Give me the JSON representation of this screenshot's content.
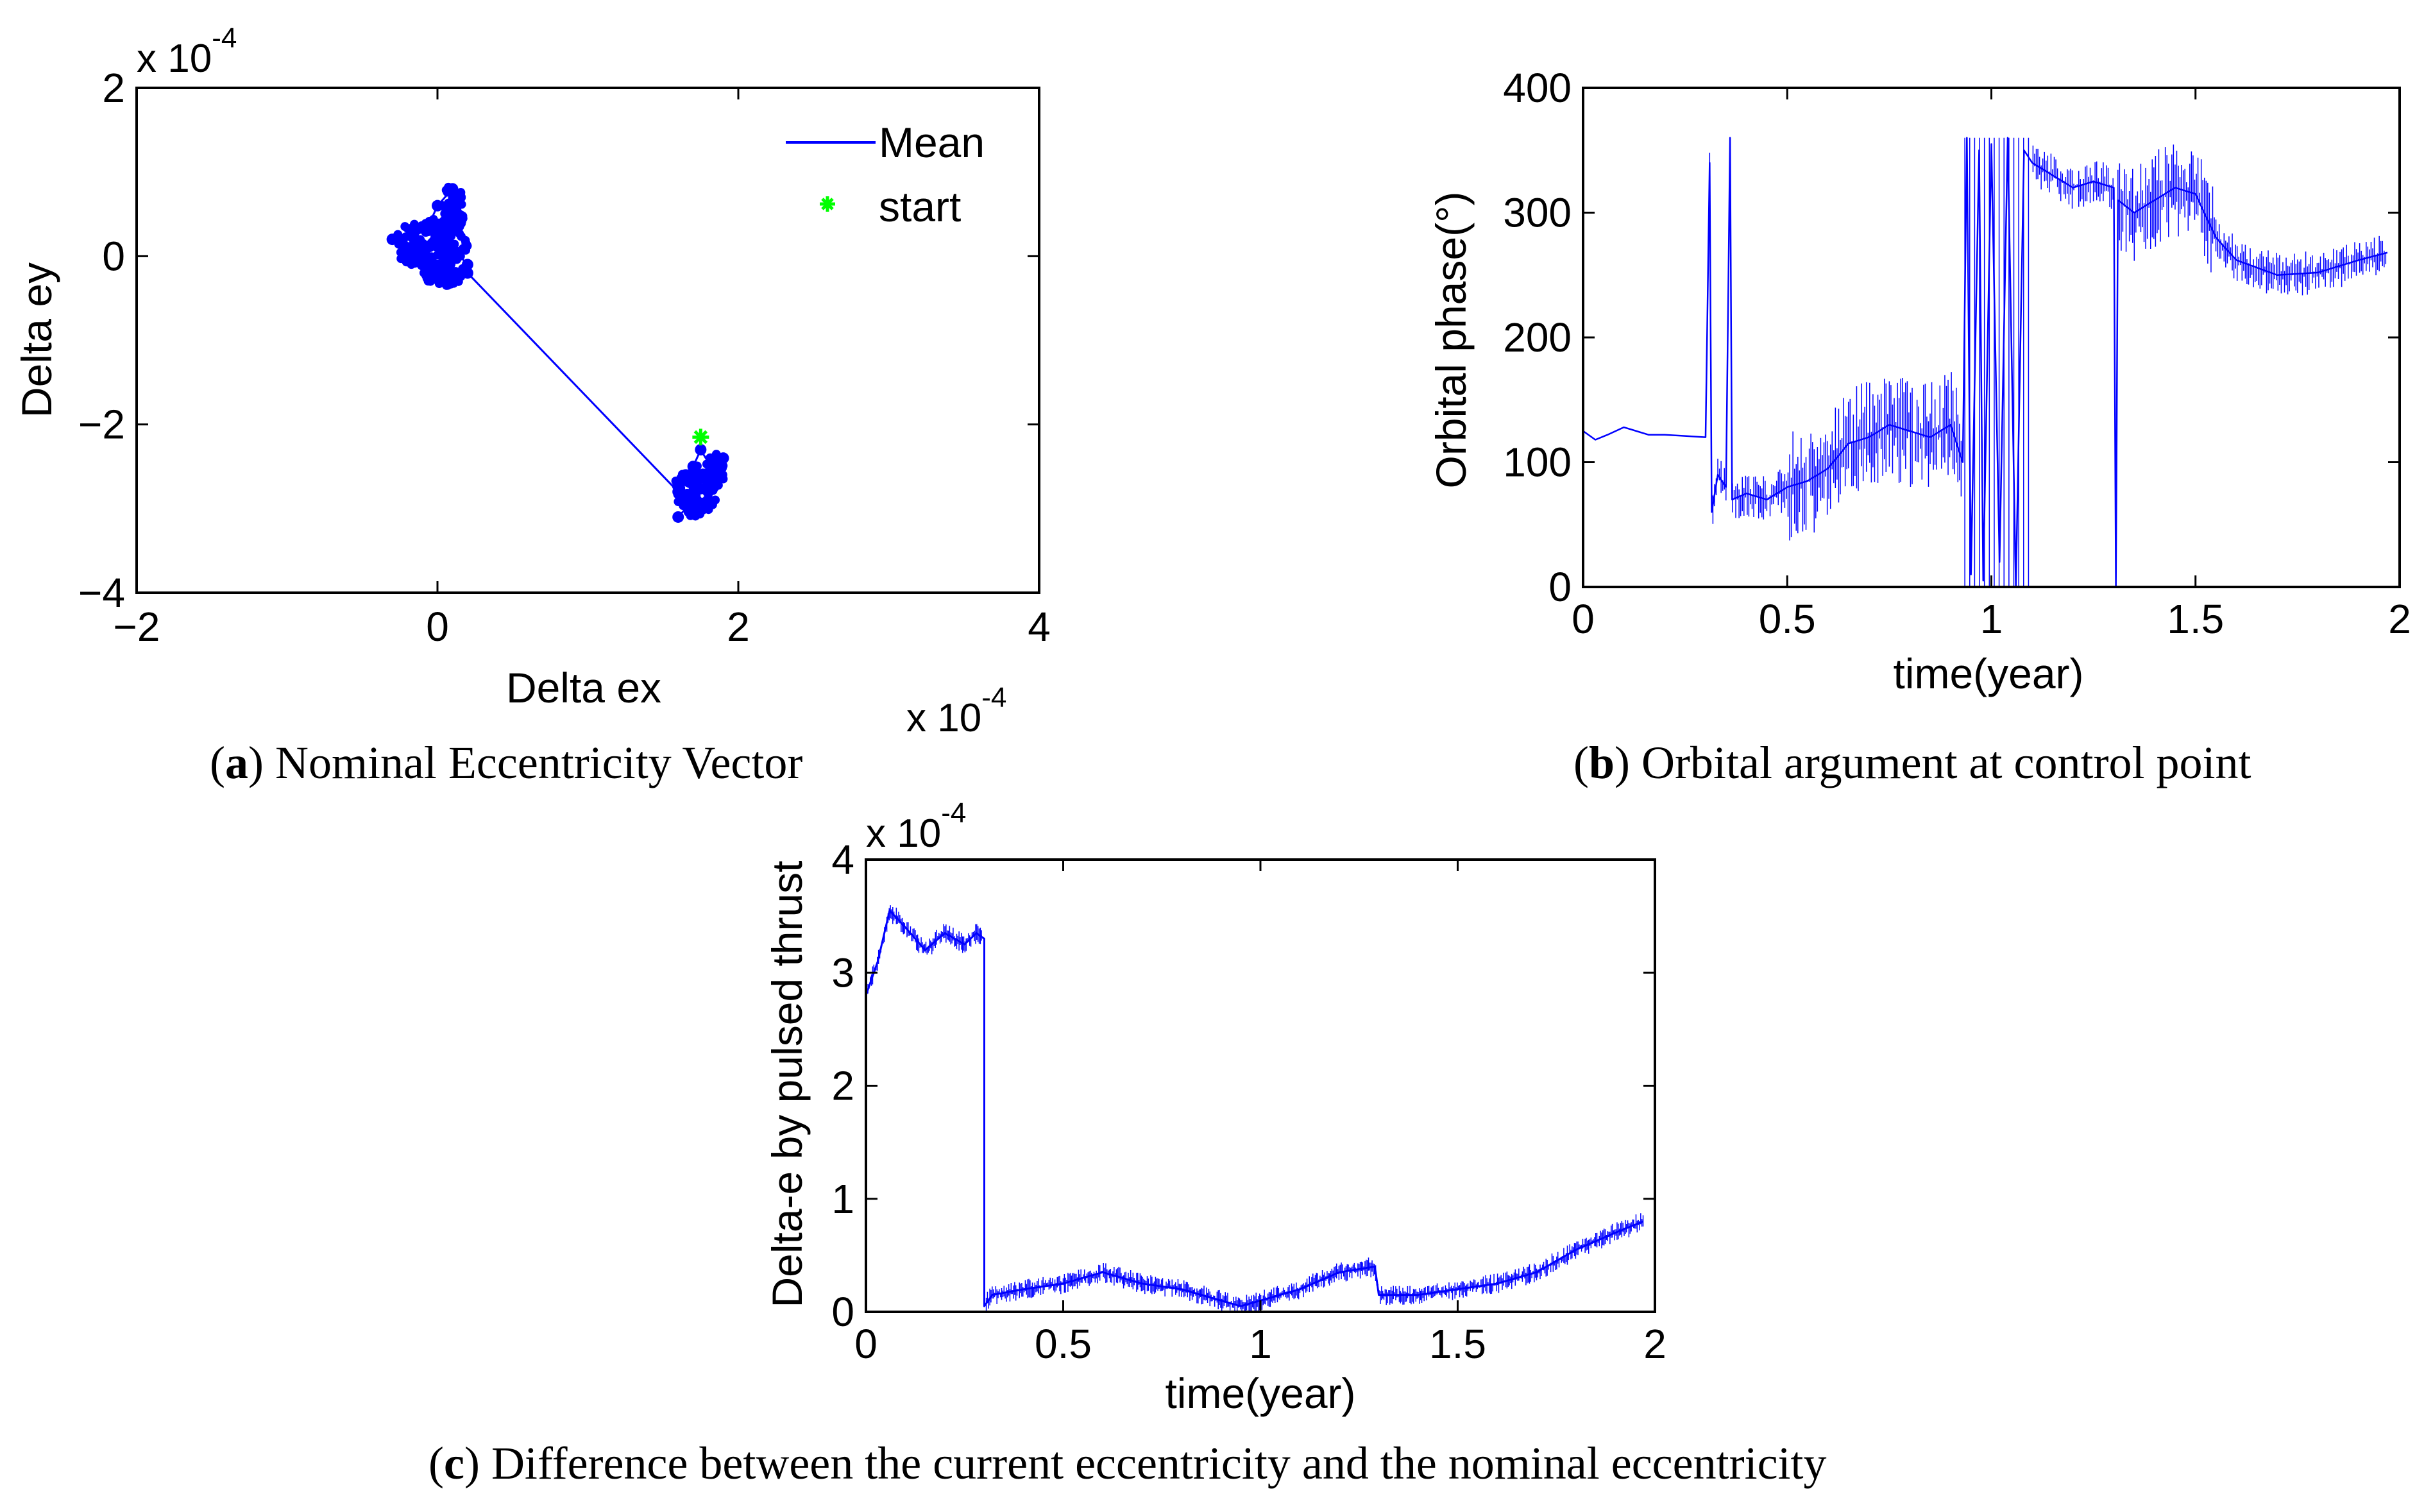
{
  "colors": {
    "series": "#0000ff",
    "start": "#00ff00",
    "axis": "#000000"
  },
  "chart_data": [
    {
      "id": "a",
      "type": "scatter",
      "xlabel": "Delta ex",
      "ylabel": "Delta ey",
      "x_multiplier": "x 10",
      "x_multiplier_exp": "-4",
      "y_multiplier": "x 10",
      "y_multiplier_exp": "-4",
      "xlim": [
        -2,
        4
      ],
      "ylim": [
        -4,
        2
      ],
      "xticks": [
        -2,
        0,
        2,
        4
      ],
      "xtick_labels": [
        "−2",
        "0",
        "2",
        "4"
      ],
      "yticks": [
        -4,
        -2,
        0,
        2
      ],
      "ytick_labels": [
        "−4",
        "−2",
        "0",
        "2"
      ],
      "legend": {
        "position": "top-right",
        "entries": [
          "Mean",
          "start"
        ]
      },
      "series": [
        {
          "name": "Mean",
          "x": [
            1.6,
            1.7,
            1.65,
            1.8,
            1.7,
            1.75,
            1.85,
            1.9,
            1.8,
            1.7,
            1.6,
            0.2,
            0.1,
            0.0,
            -0.1,
            -0.2,
            -0.3,
            -0.2,
            -0.1,
            0.0,
            0.1,
            0.15,
            0.1,
            0.0,
            -0.05,
            0.05,
            0.2,
            0.1
          ],
          "y": [
            -3.1,
            -2.9,
            -2.6,
            -2.8,
            -2.5,
            -2.3,
            -2.6,
            -2.4,
            -2.9,
            -3.0,
            -2.8,
            -0.2,
            -0.3,
            -0.2,
            -0.1,
            0.1,
            0.2,
            0.0,
            0.1,
            0.3,
            0.5,
            0.7,
            0.8,
            0.6,
            0.4,
            0.2,
            -0.1,
            -0.3
          ]
        },
        {
          "name": "start",
          "x": [
            1.75
          ],
          "y": [
            -2.15
          ]
        }
      ]
    },
    {
      "id": "b",
      "type": "line",
      "xlabel": "time(year)",
      "ylabel": "Orbital phase(°)",
      "xlim": [
        0,
        2
      ],
      "ylim": [
        0,
        400
      ],
      "xticks": [
        0,
        0.5,
        1,
        1.5,
        2
      ],
      "xtick_labels": [
        "0",
        "0.5",
        "1",
        "1.5",
        "2"
      ],
      "yticks": [
        0,
        100,
        200,
        300,
        400
      ],
      "yticks_labels": [
        "0",
        "100",
        "200",
        "300",
        "400"
      ],
      "series": [
        {
          "x": [
            0,
            0.03,
            0.06,
            0.1,
            0.13,
            0.16,
            0.2,
            0.25,
            0.3,
            0.31,
            0.315,
            0.33,
            0.35,
            0.36,
            0.365,
            0.4,
            0.45,
            0.5,
            0.55,
            0.6,
            0.65,
            0.7,
            0.75,
            0.8,
            0.85,
            0.9,
            0.93,
            0.94,
            0.95,
            0.97,
            0.98,
            1.0,
            1.02,
            1.04,
            1.06,
            1.08,
            1.1,
            1.15,
            1.2,
            1.25,
            1.3,
            1.305,
            1.31,
            1.35,
            1.4,
            1.45,
            1.5,
            1.55,
            1.6,
            1.7,
            1.8,
            1.9,
            1.97
          ],
          "y": [
            125,
            118,
            122,
            128,
            125,
            122,
            122,
            121,
            120,
            340,
            60,
            90,
            80,
            360,
            70,
            75,
            70,
            80,
            85,
            95,
            115,
            120,
            130,
            125,
            120,
            130,
            100,
            360,
            10,
            350,
            5,
            355,
            20,
            360,
            0,
            350,
            340,
            330,
            320,
            325,
            320,
            0,
            310,
            300,
            310,
            320,
            315,
            280,
            262,
            250,
            252,
            262,
            268
          ]
        }
      ]
    },
    {
      "id": "c",
      "type": "line",
      "xlabel": "time(year)",
      "ylabel": "Delta-e by pulsed thrust",
      "y_multiplier": "x 10",
      "y_multiplier_exp": "-4",
      "xlim": [
        0,
        2
      ],
      "ylim": [
        0,
        4
      ],
      "xticks": [
        0,
        0.5,
        1,
        1.5,
        2
      ],
      "xtick_labels": [
        "0",
        "0.5",
        "1",
        "1.5",
        "2"
      ],
      "yticks": [
        0,
        1,
        2,
        3,
        4
      ],
      "ytick_labels": [
        "0",
        "1",
        "2",
        "3",
        "4"
      ],
      "series": [
        {
          "x": [
            0,
            0.03,
            0.06,
            0.1,
            0.15,
            0.2,
            0.25,
            0.28,
            0.3,
            0.3,
            0.32,
            0.4,
            0.5,
            0.6,
            0.7,
            0.8,
            0.9,
            0.95,
            1.0,
            1.1,
            1.2,
            1.29,
            1.3,
            1.35,
            1.4,
            1.5,
            1.6,
            1.7,
            1.8,
            1.9,
            1.97
          ],
          "y": [
            2.8,
            3.1,
            3.55,
            3.4,
            3.2,
            3.35,
            3.25,
            3.35,
            3.3,
            0.05,
            0.15,
            0.2,
            0.25,
            0.35,
            0.25,
            0.2,
            0.1,
            0.05,
            0.1,
            0.2,
            0.35,
            0.4,
            0.15,
            0.15,
            0.15,
            0.2,
            0.25,
            0.35,
            0.55,
            0.7,
            0.8
          ]
        }
      ]
    }
  ],
  "captions": {
    "a": {
      "letter": "a",
      "text": " Nominal Eccentricity Vector"
    },
    "b": {
      "letter": "b",
      "text": " Orbital argument at control point"
    },
    "c": {
      "letter": "c",
      "text": " Difference between the current eccentricity and the nominal eccentricity"
    }
  }
}
